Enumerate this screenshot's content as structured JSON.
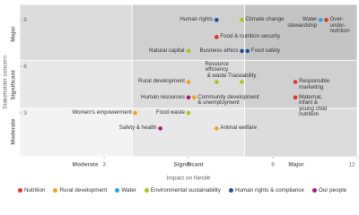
{
  "chart_data": {
    "type": "scatter",
    "x_label": "Impact on Nestlé",
    "y_label": "Stakeholder concern",
    "x_zone_labels": [
      "Moderate",
      "Significant",
      "Major"
    ],
    "y_zone_labels": [
      "Moderate",
      "Significant",
      "Major"
    ],
    "xlim": [
      0,
      12
    ],
    "xticks": [
      3,
      6,
      9,
      12
    ],
    "ylim": [
      0,
      10
    ],
    "yticks": [
      3,
      6,
      9
    ],
    "series": [
      {
        "name": "Nutrition",
        "color": "#e8312b",
        "labels": [
          "Over-\nunder-\nnutrition",
          "Food & nutrition security",
          "Responsible\nmarketing",
          "Maternal,\ninfant &\nyoung child\nnutrition"
        ],
        "x": [
          10.9,
          7.0,
          9.8,
          9.8
        ],
        "y": [
          9.0,
          7.9,
          5.0,
          4.0
        ]
      },
      {
        "name": "Rural development",
        "color": "#f5a21b",
        "labels": [
          "Rural development",
          "Community development\n& unemployment",
          "Women's empowerment",
          "Animal welfare"
        ],
        "x": [
          6.0,
          6.2,
          4.1,
          7.0
        ],
        "y": [
          5.0,
          4.0,
          3.0,
          2.0
        ]
      },
      {
        "name": "Water",
        "color": "#1fa7e0",
        "labels": [
          "Water\nstewardship"
        ],
        "x": [
          10.7
        ],
        "y": [
          9.0
        ]
      },
      {
        "name": "Environmental sustainability",
        "color": "#a8c61e",
        "labels": [
          "Climate change",
          "Natural capital",
          "Resource\nefficiency\n& waste",
          "Traceability",
          "Food waste"
        ],
        "x": [
          7.9,
          6.0,
          7.0,
          7.9,
          6.0
        ],
        "y": [
          9.0,
          7.0,
          5.0,
          5.0,
          3.0
        ]
      },
      {
        "name": "Human rights & compliance",
        "color": "#1d4f9c",
        "labels": [
          "Human rights",
          "Business ethics",
          "Food safety"
        ],
        "x": [
          7.0,
          7.9,
          8.1
        ],
        "y": [
          9.0,
          7.0,
          7.0
        ]
      },
      {
        "name": "Our people",
        "color": "#a3197a",
        "labels": [
          "Human resources",
          "Safety & health"
        ],
        "x": [
          6.0,
          5.0
        ],
        "y": [
          4.0,
          2.0
        ]
      }
    ]
  }
}
